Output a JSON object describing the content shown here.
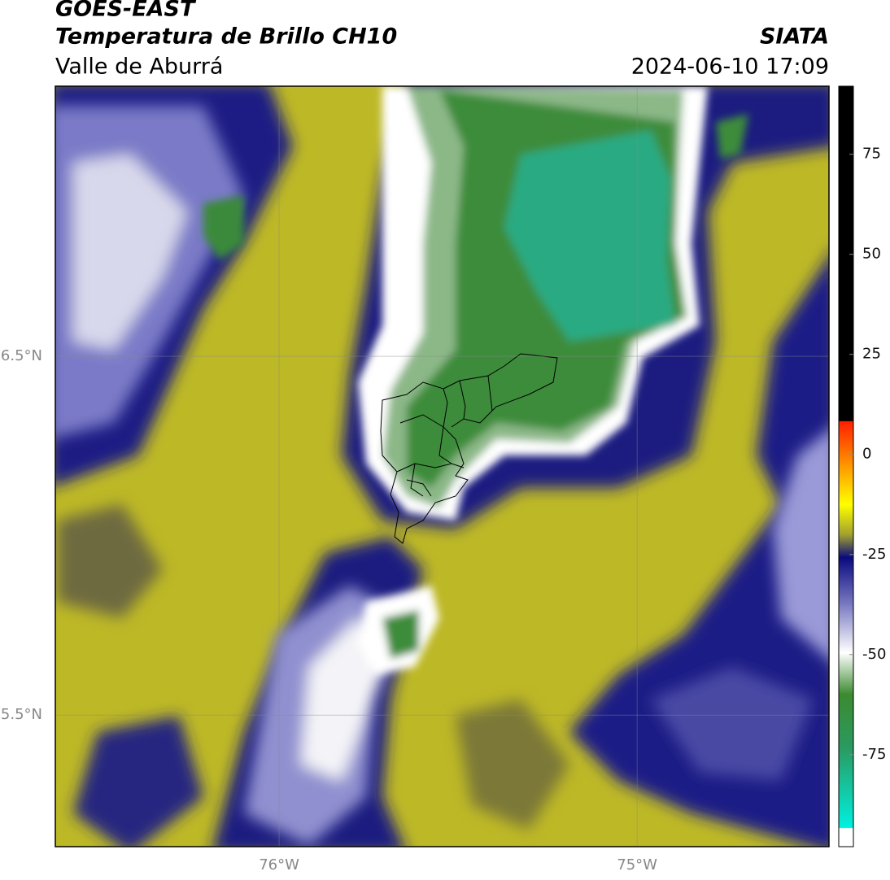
{
  "header": {
    "title": "GOES-EAST",
    "subtitle": "Temperatura de Brillo CH10",
    "region": "Valle de Aburrá",
    "source": "SIATA",
    "timestamp": "2024-06-10 17:09"
  },
  "map": {
    "lonlim": [
      -76.625,
      -74.464
    ],
    "latlim": [
      5.133,
      7.253
    ],
    "lon_ticks": [
      {
        "value": -76,
        "label": "76°W"
      },
      {
        "value": -75,
        "label": "75°W"
      }
    ],
    "lat_ticks": [
      {
        "value": 6.5,
        "label": "6.5°N"
      },
      {
        "value": 5.5,
        "label": "5.5°N"
      }
    ],
    "grid": true
  },
  "colorbar": {
    "lim": [
      -98,
      92
    ],
    "ticks": [
      75,
      50,
      25,
      0,
      -25,
      -50,
      -75
    ]
  }
}
